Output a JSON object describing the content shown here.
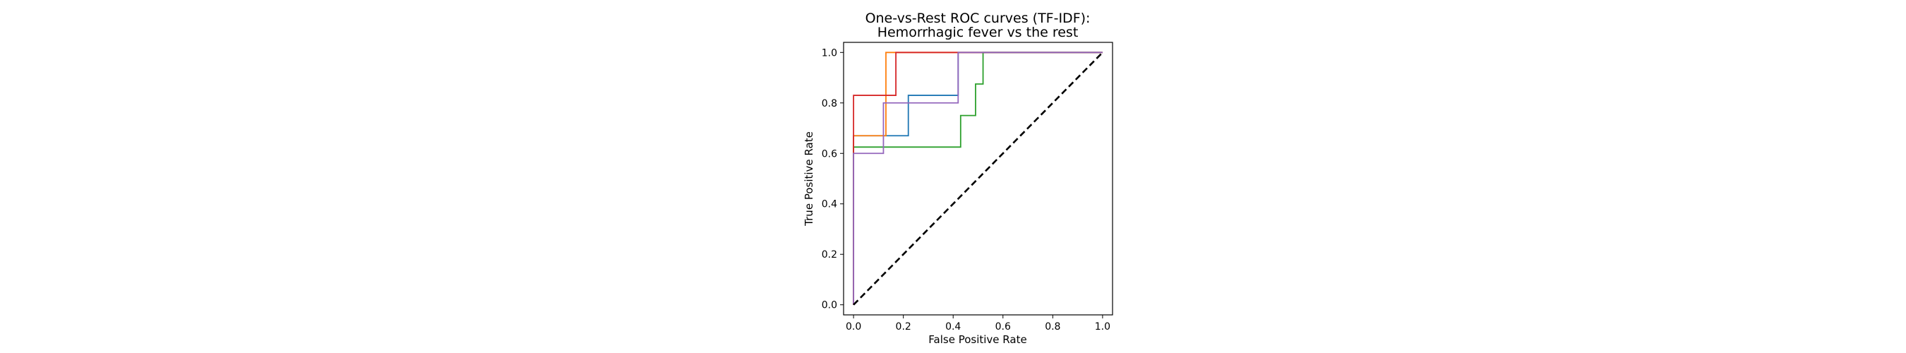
{
  "chart_data": {
    "type": "line",
    "title": "One-vs-Rest ROC curves (TF-IDF):",
    "subtitle": "Hemorrhagic fever vs the rest",
    "xlabel": "False Positive Rate",
    "ylabel": "True Positive Rate",
    "xlim": [
      -0.04,
      1.04
    ],
    "ylim": [
      -0.04,
      1.04
    ],
    "xticks": [
      "0.0",
      "0.2",
      "0.4",
      "0.6",
      "0.8",
      "1.0"
    ],
    "yticks": [
      "0.0",
      "0.2",
      "0.4",
      "0.6",
      "0.8",
      "1.0"
    ],
    "grid": false,
    "legend": false,
    "series": [
      {
        "color": "#1f77b4",
        "x": [
          0.0,
          0.0,
          0.0,
          0.22,
          0.22,
          0.42,
          0.42,
          1.0
        ],
        "y": [
          0.0,
          0.67,
          0.67,
          0.67,
          0.83,
          0.83,
          1.0,
          1.0
        ]
      },
      {
        "color": "#ff7f0e",
        "x": [
          0.0,
          0.0,
          0.13,
          0.13,
          1.0
        ],
        "y": [
          0.0,
          0.67,
          0.67,
          1.0,
          1.0
        ]
      },
      {
        "color": "#2ca02c",
        "x": [
          0.0,
          0.0,
          0.43,
          0.43,
          0.49,
          0.49,
          0.52,
          0.52,
          1.0
        ],
        "y": [
          0.0,
          0.625,
          0.625,
          0.75,
          0.75,
          0.875,
          0.875,
          1.0,
          1.0
        ]
      },
      {
        "color": "#d62728",
        "x": [
          0.0,
          0.0,
          0.17,
          0.17,
          1.0
        ],
        "y": [
          0.0,
          0.83,
          0.83,
          1.0,
          1.0
        ]
      },
      {
        "color": "#9467bd",
        "x": [
          0.0,
          0.0,
          0.12,
          0.12,
          0.42,
          0.42,
          1.0
        ],
        "y": [
          0.0,
          0.6,
          0.6,
          0.8,
          0.8,
          1.0,
          1.0
        ]
      },
      {
        "color": "#000000",
        "dashed": true,
        "x": [
          0.0,
          1.0
        ],
        "y": [
          0.0,
          1.0
        ]
      }
    ]
  }
}
